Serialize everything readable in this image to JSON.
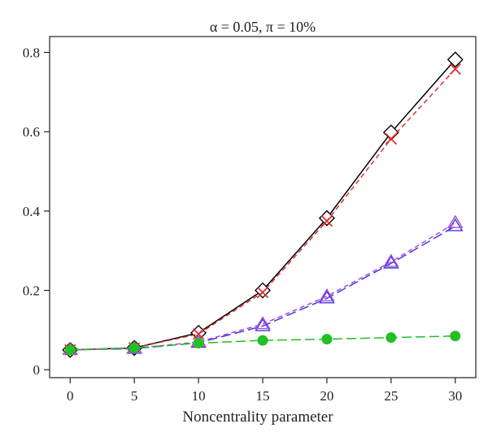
{
  "chart_data": {
    "type": "line",
    "title": "α = 0.05, π = 10%",
    "xlabel": "Noncentrality parameter",
    "ylabel": "",
    "x": [
      0,
      5,
      10,
      15,
      20,
      25,
      30
    ],
    "xlim": [
      -1.6,
      31.6
    ],
    "ylim": [
      -0.02,
      0.84
    ],
    "xticks": [
      "0",
      "5",
      "10",
      "15",
      "20",
      "25",
      "30"
    ],
    "yticks": [
      "0",
      "0.2",
      "0.4",
      "0.6",
      "0.8"
    ],
    "ytick_values": [
      0,
      0.2,
      0.4,
      0.6,
      0.8
    ],
    "grid": false,
    "series": [
      {
        "marker": "diamond",
        "color": "#000000",
        "dash": "solid",
        "values": [
          0.05,
          0.055,
          0.093,
          0.2,
          0.382,
          0.598,
          0.782
        ]
      },
      {
        "marker": "cross",
        "color": "#e03030",
        "dash": "dashed",
        "values": [
          0.05,
          0.055,
          0.09,
          0.195,
          0.375,
          0.582,
          0.758
        ]
      },
      {
        "marker": "triangle",
        "color": "#3b3bdc",
        "dash": "longdash",
        "values": [
          0.05,
          0.053,
          0.068,
          0.11,
          0.18,
          0.268,
          0.362
        ]
      },
      {
        "marker": "triangle",
        "color": "#b04ad6",
        "dash": "dashed",
        "values": [
          0.05,
          0.054,
          0.07,
          0.115,
          0.185,
          0.272,
          0.37
        ]
      },
      {
        "marker": "dot",
        "color": "#22c022",
        "dash": "longdash",
        "values": [
          0.05,
          0.055,
          0.067,
          0.074,
          0.077,
          0.081,
          0.085
        ]
      }
    ]
  }
}
